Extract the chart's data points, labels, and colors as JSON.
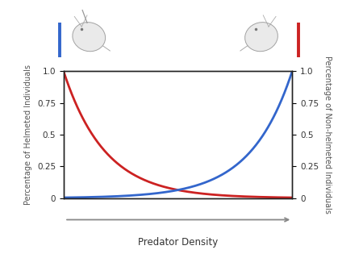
{
  "xlabel": "Predator Density",
  "ylabel_left": "Percentage of Helmeted Individuals",
  "ylabel_right": "Percentage of Non-helmeted Individuals",
  "xlim": [
    0,
    1
  ],
  "ylim": [
    0,
    1.0
  ],
  "yticks": [
    0,
    0.25,
    0.5,
    0.75,
    1.0
  ],
  "ytick_labels": [
    "0",
    "0.25",
    "0.5",
    "0.75",
    "1.0"
  ],
  "red_color": "#cc2222",
  "blue_color": "#3366cc",
  "background_color": "#ffffff",
  "line_width": 2.0,
  "axis_label_fontsize": 7.0,
  "tick_fontsize": 7.5,
  "xlabel_fontsize": 8.5,
  "red_decay": 5.5,
  "blue_decay": 5.5
}
